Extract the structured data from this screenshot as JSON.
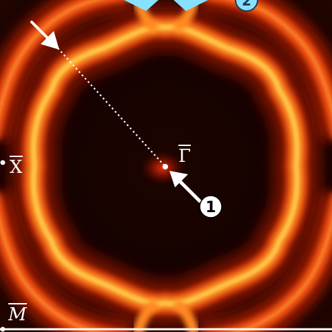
{
  "labels": {
    "gamma": "Γ",
    "x": "X",
    "m": "M"
  },
  "markers": {
    "marker_1": "1",
    "marker_2": "2"
  },
  "colors": {
    "background": "#120200",
    "band_outer": "#ff5a14",
    "band_inner": "#ffb030",
    "band_core": "#ffd060",
    "marker_fill": "#ffffff",
    "marker_2_fill": "#88e0ff",
    "dotted_line": "#ffffff"
  }
}
